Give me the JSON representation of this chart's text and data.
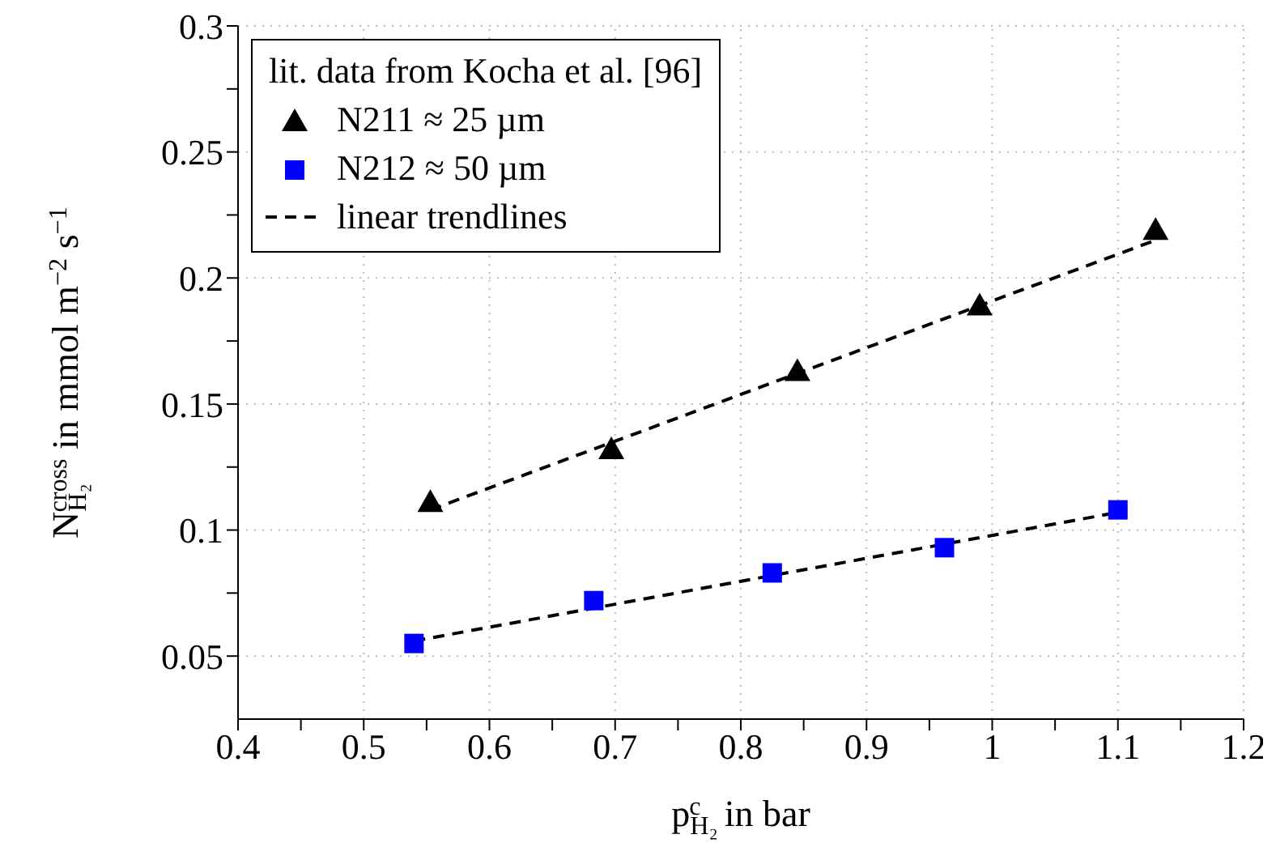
{
  "chart_data": {
    "type": "scatter",
    "xlabel": "p$_{H₂}$$^{c}$ in bar",
    "ylabel": "N$_{H₂}$$^{cross}$ in mmol m$^{−2}$ s$^{−1}$",
    "legend_title": "lit. data from Kocha et al. [96]",
    "legend": "top left",
    "grid": true,
    "xlim": [
      0.4,
      1.2
    ],
    "xticks": [
      0.4,
      {
        "value": 0.45,
        "label": null
      },
      0.5,
      {
        "value": 0.55,
        "label": null
      },
      0.6,
      {
        "value": 0.65,
        "label": null
      },
      0.7,
      {
        "value": 0.75,
        "label": null
      },
      0.8,
      {
        "value": 0.85,
        "label": null
      },
      0.9,
      {
        "value": 0.95,
        "label": null
      },
      1,
      {
        "value": 1.05,
        "label": null
      },
      1.1,
      {
        "value": 1.15,
        "label": null
      },
      1.2
    ],
    "ylim": [
      0.025,
      0.3
    ],
    "yticks": [
      0.05,
      {
        "value": 0.075,
        "label": null
      },
      0.1,
      {
        "value": 0.125,
        "label": null
      },
      0.15,
      {
        "value": 0.175,
        "label": null
      },
      0.2,
      {
        "value": 0.225,
        "label": null
      },
      0.25,
      {
        "value": 0.275,
        "label": null
      },
      0.3
    ],
    "series": [
      {
        "name": "N211 ≈ 25 µm",
        "type": "scatter",
        "marker": "triangle",
        "color": "#000000",
        "x": [
          0.553,
          0.697,
          0.845,
          0.99,
          1.13
        ],
        "values": [
          0.111,
          0.132,
          0.163,
          0.189,
          0.219
        ]
      },
      {
        "name": "N212 ≈ 50 µm",
        "type": "scatter",
        "marker": "square",
        "color": "#0000ff",
        "x": [
          0.54,
          0.683,
          0.825,
          0.962,
          1.1
        ],
        "values": [
          0.055,
          0.072,
          0.083,
          0.093,
          0.108
        ]
      },
      {
        "name": "linear trendlines",
        "type": "line",
        "line_style": "dashed",
        "marker": "none",
        "color": "#000000",
        "x": [
          0.553,
          1.13
        ],
        "values": [
          0.108,
          0.215
        ]
      },
      {
        "type": "line",
        "line_style": "dashed",
        "marker": "none",
        "color": "#000000",
        "x": [
          0.54,
          1.1
        ],
        "values": [
          0.056,
          0.107
        ]
      }
    ]
  }
}
